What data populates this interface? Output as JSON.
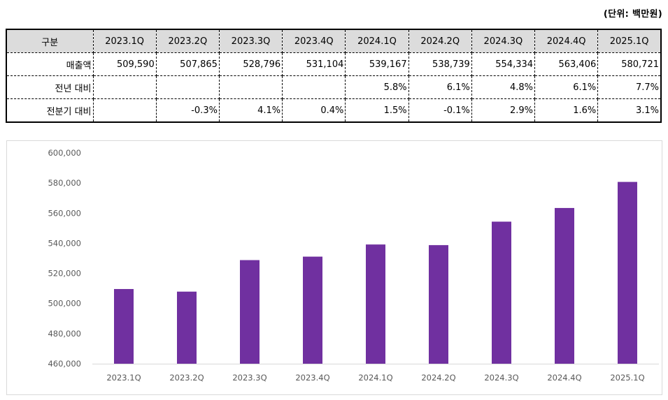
{
  "unit_label": "(단위: 백만원)",
  "table": {
    "header_label": "구분",
    "columns": [
      "2023.1Q",
      "2023.2Q",
      "2023.3Q",
      "2023.4Q",
      "2024.1Q",
      "2024.2Q",
      "2024.3Q",
      "2024.4Q",
      "2025.1Q"
    ],
    "rows": [
      {
        "label": "매출액",
        "values": [
          "509,590",
          "507,865",
          "528,796",
          "531,104",
          "539,167",
          "538,739",
          "554,334",
          "563,406",
          "580,721"
        ]
      },
      {
        "label": "전년 대비",
        "values": [
          "",
          "",
          "",
          "",
          "5.8%",
          "6.1%",
          "4.8%",
          "6.1%",
          "7.7%"
        ]
      },
      {
        "label": "전분기 대비",
        "values": [
          "",
          "-0.3%",
          "4.1%",
          "0.4%",
          "1.5%",
          "-0.1%",
          "2.9%",
          "1.6%",
          "3.1%"
        ]
      }
    ]
  },
  "chart_data": {
    "type": "bar",
    "title": "",
    "xlabel": "",
    "ylabel": "",
    "categories": [
      "2023.1Q",
      "2023.2Q",
      "2023.3Q",
      "2023.4Q",
      "2024.1Q",
      "2024.2Q",
      "2024.3Q",
      "2024.4Q",
      "2025.1Q"
    ],
    "values": [
      509590,
      507865,
      528796,
      531104,
      539167,
      538739,
      554334,
      563406,
      580721
    ],
    "ylim": [
      460000,
      600000
    ],
    "yticks": [
      460000,
      480000,
      500000,
      520000,
      540000,
      560000,
      580000,
      600000
    ],
    "ytick_labels": [
      "460,000",
      "480,000",
      "500,000",
      "520,000",
      "540,000",
      "560,000",
      "580,000",
      "600,000"
    ],
    "grid": false,
    "legend": "none",
    "bar_color": "#7030a0"
  }
}
